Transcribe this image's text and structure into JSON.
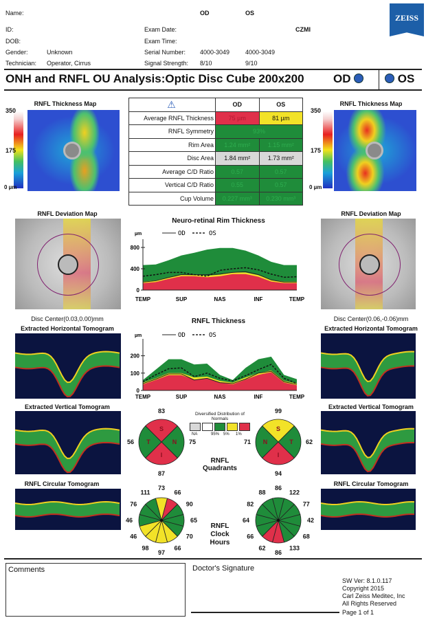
{
  "header": {
    "name_label": "Name:",
    "id_label": "ID:",
    "dob_label": "DOB:",
    "gender_label": "Gender:",
    "gender_value": "Unknown",
    "technician_label": "Technician:",
    "technician_value": "Operator, Cirrus",
    "od_label": "OD",
    "os_label": "OS",
    "exam_date_label": "Exam Date:",
    "exam_time_label": "Exam Time:",
    "serial_label": "Serial Number:",
    "serial_od": "4000-3049",
    "serial_os": "4000-3049",
    "signal_label": "Signal Strength:",
    "signal_od": "8/10",
    "signal_os": "9/10",
    "site": "CZMI",
    "logo": "ZEISS"
  },
  "title": {
    "text": "ONH and RNFL OU Analysis:Optic Disc Cube 200x200",
    "od": "OD",
    "os": "OS"
  },
  "maps": {
    "thickness_title": "RNFL Thickness Map",
    "scale_max": "350",
    "scale_mid": "175",
    "scale_min": "0 µm",
    "deviation_title": "RNFL Deviation Map",
    "disc_center_od": "Disc Center(0.03,0.00)mm",
    "disc_center_os": "Disc Center(0.06,-0.06)mm",
    "horizontal_title": "Extracted Horizontal Tomogram",
    "vertical_title": "Extracted Vertical Tomogram",
    "circular_title": "RNFL Circular Tomogram"
  },
  "table": {
    "head": [
      "OD",
      "OS"
    ],
    "rows": [
      {
        "label": "Average RNFL Thickness",
        "od": "75 µm",
        "os": "81 µm"
      },
      {
        "label": "RNFL Symmetry",
        "both": "93%"
      },
      {
        "label": "Rim Area",
        "od": "1.24 mm²",
        "os": "1.15 mm²"
      },
      {
        "label": "Disc Area",
        "od": "1.84 mm²",
        "os": "1.73 mm²"
      },
      {
        "label": "Average C/D Ratio",
        "od": "0.57",
        "os": "0.57"
      },
      {
        "label": "Vertical C/D Ratio",
        "od": "0.55",
        "os": "0.57"
      },
      {
        "label": "Cup Volume",
        "od": "0.227 mm³",
        "os": "0.230 mm³"
      }
    ]
  },
  "colors": {
    "red": "#e0304a",
    "yellow": "#f2e228",
    "green": "#1f8c3a",
    "gray": "#d8d8d8"
  },
  "chart_data": [
    {
      "type": "area",
      "title": "Neuro-retinal Rim Thickness",
      "ylabel": "µm",
      "legend": [
        "OD",
        "OS"
      ],
      "categories": [
        "TEMP",
        "SUP",
        "NAS",
        "INF",
        "TEMP"
      ],
      "ylim": [
        0,
        800
      ],
      "yticks": [
        "0",
        "400",
        "800"
      ],
      "normal_95": [
        470,
        480,
        560,
        650,
        700,
        760,
        790,
        790,
        740,
        650,
        530,
        470,
        470
      ],
      "normal_5": [
        160,
        180,
        240,
        290,
        290,
        270,
        290,
        330,
        330,
        280,
        190,
        160,
        160
      ],
      "normal_1": [
        130,
        150,
        210,
        260,
        260,
        240,
        260,
        300,
        300,
        250,
        160,
        130,
        130
      ],
      "od": [
        150,
        175,
        235,
        290,
        285,
        290,
        300,
        330,
        345,
        290,
        190,
        150,
        150
      ],
      "os": [
        260,
        290,
        330,
        330,
        290,
        260,
        370,
        400,
        420,
        380,
        300,
        240,
        250
      ]
    },
    {
      "type": "area",
      "title": "RNFL Thickness",
      "ylabel": "µm",
      "legend": [
        "OD",
        "OS"
      ],
      "categories": [
        "TEMP",
        "SUP",
        "NAS",
        "INF",
        "TEMP"
      ],
      "ylim": [
        0,
        250
      ],
      "yticks": [
        "0",
        "100",
        "200"
      ],
      "normal_95": [
        60,
        120,
        180,
        180,
        150,
        155,
        90,
        60,
        130,
        180,
        195,
        90,
        65
      ],
      "normal_5": [
        45,
        70,
        100,
        100,
        75,
        80,
        55,
        45,
        75,
        100,
        115,
        55,
        40
      ],
      "normal_1": [
        35,
        60,
        88,
        88,
        62,
        68,
        45,
        35,
        62,
        90,
        105,
        45,
        30
      ],
      "od": [
        40,
        65,
        95,
        95,
        60,
        70,
        45,
        40,
        65,
        100,
        110,
        50,
        35
      ],
      "os": [
        50,
        90,
        125,
        130,
        80,
        100,
        70,
        55,
        85,
        120,
        150,
        70,
        40
      ]
    }
  ],
  "legend": {
    "title": "Diversified Distribution of Normals",
    "labels": [
      "NA",
      "95%",
      "5%",
      "1%"
    ]
  },
  "quadrants": {
    "label": "RNFL Quadrants",
    "od": {
      "S": "83",
      "N": "75",
      "I": "87",
      "T": "56",
      "colors": {
        "S": "red",
        "N": "green",
        "I": "red",
        "T": "green"
      },
      "letters": {
        "left": "T",
        "right": "N"
      }
    },
    "os": {
      "S": "99",
      "N": "71",
      "I": "94",
      "T": "62",
      "colors": {
        "S": "yellow",
        "N": "green",
        "I": "red",
        "T": "green"
      },
      "letters": {
        "left": "N",
        "right": "T"
      }
    }
  },
  "clock": {
    "label": "RNFL Clock Hours",
    "od": {
      "values": [
        "73",
        "66",
        "90",
        "65",
        "70",
        "66",
        "97",
        "98",
        "46",
        "46",
        "76",
        "111"
      ],
      "colors": [
        "yellow",
        "red",
        "green",
        "green",
        "green",
        "yellow",
        "yellow",
        "yellow",
        "yellow",
        "green",
        "green",
        "green"
      ]
    },
    "os": {
      "values": [
        "86",
        "122",
        "77",
        "42",
        "68",
        "133",
        "86",
        "62",
        "66",
        "64",
        "82",
        "88"
      ],
      "colors": [
        "green",
        "green",
        "green",
        "green",
        "green",
        "green",
        "red",
        "red",
        "green",
        "green",
        "green",
        "green"
      ]
    }
  },
  "footer": {
    "comments": "Comments",
    "signature": "Doctor's Signature",
    "sw": "SW Ver: 8.1.0.117",
    "copyright": "Copyright 2015",
    "company": "Carl Zeiss Meditec, Inc",
    "rights": "All Rights Reserved",
    "page": "Page 1 of 1"
  }
}
